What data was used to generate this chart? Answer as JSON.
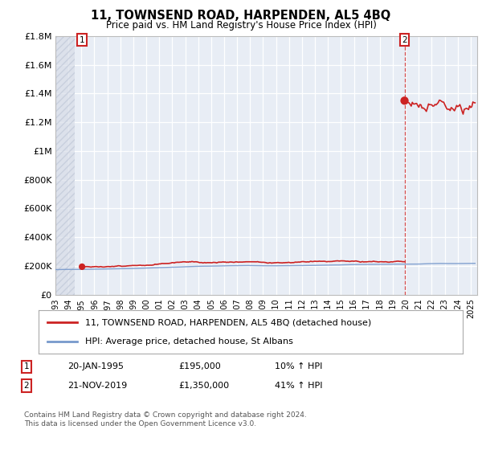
{
  "title": "11, TOWNSEND ROAD, HARPENDEN, AL5 4BQ",
  "subtitle": "Price paid vs. HM Land Registry's House Price Index (HPI)",
  "legend_line1": "11, TOWNSEND ROAD, HARPENDEN, AL5 4BQ (detached house)",
  "legend_line2": "HPI: Average price, detached house, St Albans",
  "annotation1_date": "20-JAN-1995",
  "annotation1_price": "£195,000",
  "annotation1_hpi": "10% ↑ HPI",
  "annotation2_date": "21-NOV-2019",
  "annotation2_price": "£1,350,000",
  "annotation2_hpi": "41% ↑ HPI",
  "footer": "Contains HM Land Registry data © Crown copyright and database right 2024.\nThis data is licensed under the Open Government Licence v3.0.",
  "hpi_color": "#7799cc",
  "price_color": "#cc2222",
  "annotation_box_color": "#cc2222",
  "background_color": "#ffffff",
  "plot_bg_color": "#e8edf5",
  "ylim": [
    0,
    1800000
  ],
  "yticks": [
    0,
    200000,
    400000,
    600000,
    800000,
    1000000,
    1200000,
    1400000,
    1600000,
    1800000
  ],
  "ytick_labels": [
    "£0",
    "£200K",
    "£400K",
    "£600K",
    "£800K",
    "£1M",
    "£1.2M",
    "£1.4M",
    "£1.6M",
    "£1.8M"
  ],
  "sale1_year": 1995.05,
  "sale1_price": 195000,
  "sale2_year": 2019.9,
  "sale2_price": 1350000,
  "xmin": 1993.0,
  "xmax": 2025.5
}
